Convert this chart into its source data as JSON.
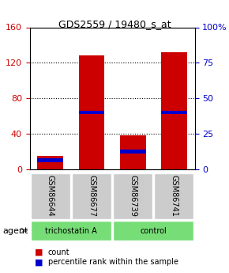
{
  "title": "GDS2559 / 19480_s_at",
  "samples": [
    "GSM86644",
    "GSM86677",
    "GSM86739",
    "GSM86741"
  ],
  "groups": [
    "trichostatin A",
    "trichostatin A",
    "control",
    "control"
  ],
  "group_colors": {
    "trichostatin A": "#90EE90",
    "control": "#90EE90"
  },
  "red_values": [
    15,
    128,
    38,
    132
  ],
  "blue_values": [
    10,
    64,
    20,
    64
  ],
  "ylim_left": [
    0,
    160
  ],
  "ylim_right": [
    0,
    100
  ],
  "yticks_left": [
    0,
    40,
    80,
    120,
    160
  ],
  "yticks_right": [
    0,
    25,
    50,
    75,
    100
  ],
  "yticklabels_right": [
    "0",
    "25",
    "50",
    "75",
    "100%"
  ],
  "left_tick_color": "#cc0000",
  "right_tick_color": "#0000cc",
  "bar_width": 0.35,
  "red_color": "#cc0000",
  "blue_color": "#0000cc",
  "grid_color": "#000000",
  "bg_color": "#ffffff",
  "label_box_color": "#cccccc",
  "green_color": "#77dd77",
  "legend_count": "count",
  "legend_pct": "percentile rank within the sample",
  "agent_label": "agent"
}
